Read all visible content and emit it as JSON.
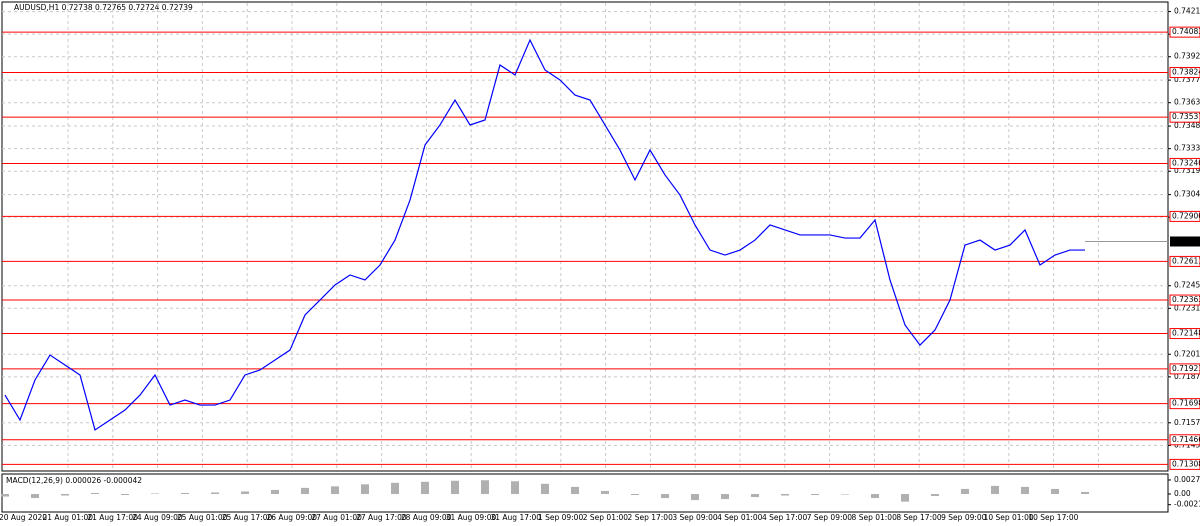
{
  "chart_data": [
    {
      "type": "line",
      "title": "AUDUSD,H1  0.72738 0.72765 0.72724 0.72739",
      "color": "#0000ff",
      "values": [
        0.71753,
        0.71593,
        0.7185,
        0.7201,
        0.71946,
        0.71882,
        0.71529,
        0.71593,
        0.71657,
        0.71753,
        0.71882,
        0.71689,
        0.71721,
        0.71689,
        0.71689,
        0.71721,
        0.71882,
        0.71914,
        0.71978,
        0.72042,
        0.72267,
        0.72363,
        0.7246,
        0.72524,
        0.72492,
        0.72588,
        0.72748,
        0.73005,
        0.73358,
        0.73487,
        0.73647,
        0.73487,
        0.73519,
        0.73872,
        0.73808,
        0.74032,
        0.7384,
        0.73776,
        0.73679,
        0.73647,
        0.73487,
        0.73326,
        0.73134,
        0.73326,
        0.73166,
        0.73037,
        0.72845,
        0.72684,
        0.72652,
        0.72684,
        0.72748,
        0.72845,
        0.72813,
        0.72781,
        0.72781,
        0.72781,
        0.72761,
        0.72761,
        0.72877,
        0.72492,
        0.72203,
        0.72074,
        0.72171,
        0.72363,
        0.72716,
        0.72748,
        0.72684,
        0.72716,
        0.72813,
        0.72588,
        0.72652,
        0.72684,
        0.72684
      ],
      "ylim": [
        0.71272,
        0.7427
      ],
      "yticks": [
        0.74215,
        {
          "value": 0.7407,
          "label": "0.74070"
        },
        0.73925,
        0.73775,
        {
          "value": 0.7363,
          "label": "0.73630"
        },
        {
          "value": 0.7348,
          "label": "0.73480"
        },
        0.73335,
        {
          "value": 0.7319,
          "label": "0.73190"
        },
        {
          "value": 0.7304,
          "label": "0.73040"
        },
        0.72895,
        0.72455,
        {
          "value": 0.7231,
          "label": "0.72310"
        },
        0.72015,
        {
          "value": 0.7187,
          "label": "0.71870"
        },
        0.71575,
        {
          "value": 0.7143,
          "label": "0.71430"
        }
      ],
      "levels": [
        0.74083,
        0.73824,
        0.73537,
        {
          "value": 0.7324,
          "label": "0.73240"
        },
        {
          "value": 0.729,
          "label": "0.72900"
        },
        0.72611,
        0.72363,
        0.72148,
        0.71921,
        0.71698,
        0.71466,
        0.71308
      ],
      "level_color": "#ff0000",
      "bid": 0.72739,
      "time_labels": [
        "20 Aug 2020",
        "21 Aug 01:00",
        "21 Aug 17:00",
        "24 Aug 09:00",
        "25 Aug 01:00",
        "25 Aug 17:00",
        "26 Aug 09:00",
        "27 Aug 01:00",
        "27 Aug 17:00",
        "28 Aug 09:00",
        "31 Aug 09:00",
        "31 Aug 17:00",
        "1 Sep 09:00",
        "2 Sep 01:00",
        "2 Sep 17:00",
        "3 Sep 09:00",
        "4 Sep 01:00",
        "4 Sep 17:00",
        "7 Sep 09:00",
        "8 Sep 01:00",
        "8 Sep 17:00",
        "9 Sep 09:00",
        "10 Sep 01:00",
        "10 Sep 17:00"
      ],
      "grid": true
    },
    {
      "type": "bar",
      "title": "MACD(12,26,9) 0.000026 -0.000042",
      "color": "#b0b0b0",
      "values": [
        -0.0005,
        -0.0008,
        -0.0003,
        0.0002,
        -0.0002,
        0.0001,
        0.0002,
        0.0003,
        0.0005,
        0.0008,
        0.0012,
        0.0015,
        0.0019,
        0.0022,
        0.0024,
        0.0026,
        0.0027,
        0.0025,
        0.002,
        0.0014,
        0.0006,
        -0.0002,
        -0.0008,
        -0.0012,
        -0.001,
        -0.0006,
        -0.0003,
        -0.0002,
        -0.0001,
        -0.0008,
        -0.0015,
        -0.0004,
        0.001,
        0.0016,
        0.0014,
        0.001,
        0.0004
      ],
      "ylim": [
        -0.00354,
        0.00393
      ],
      "yticks": [
        0.002754,
        {
          "value": 0,
          "label": "0.00"
        },
        {
          "value": -0.0021,
          "label": "-0.00210"
        }
      ]
    }
  ]
}
